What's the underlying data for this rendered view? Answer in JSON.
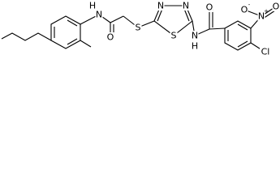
{
  "atoms": [
    {
      "label": "H"
    },
    {
      "label": "N"
    },
    {
      "label": "O"
    },
    {
      "label": "S"
    },
    {
      "label": "N"
    },
    {
      "label": "N"
    },
    {
      "label": "S"
    },
    {
      "label": "N"
    },
    {
      "label": "H"
    },
    {
      "label": "O"
    },
    {
      "label": "O",
      "charge": "-"
    },
    {
      "label": "N",
      "charge": "+"
    },
    {
      "label": "O"
    },
    {
      "label": "Cl"
    }
  ]
}
